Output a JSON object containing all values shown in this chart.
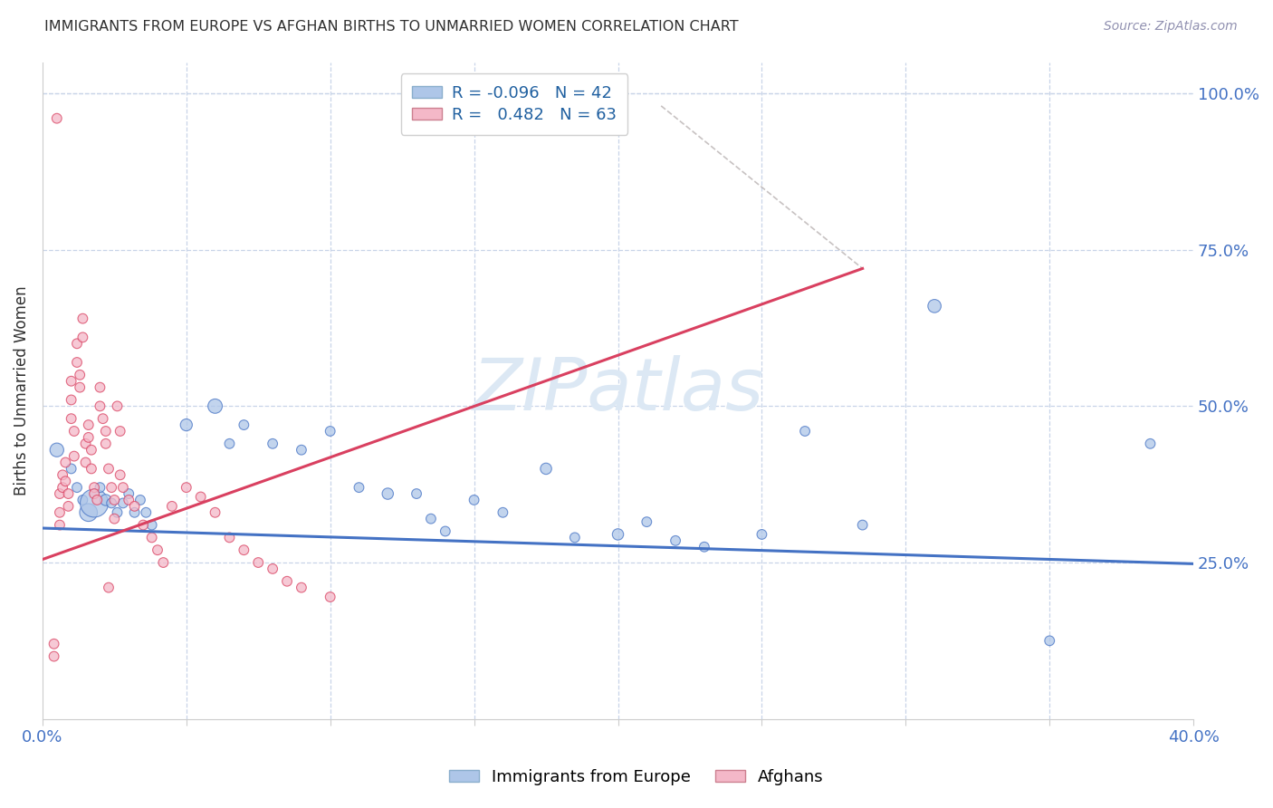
{
  "title": "IMMIGRANTS FROM EUROPE VS AFGHAN BIRTHS TO UNMARRIED WOMEN CORRELATION CHART",
  "source": "Source: ZipAtlas.com",
  "ylabel": "Births to Unmarried Women",
  "watermark": "ZIPatlas",
  "legend_blue_R": "-0.096",
  "legend_blue_N": 42,
  "legend_pink_R": "0.482",
  "legend_pink_N": 63,
  "legend_blue_label": "Immigrants from Europe",
  "legend_pink_label": "Afghans",
  "xlim": [
    0.0,
    0.4
  ],
  "ylim": [
    0.0,
    1.05
  ],
  "blue_color": "#aec6e8",
  "pink_color": "#f4b8c8",
  "blue_line_color": "#4472c4",
  "pink_line_color": "#d94060",
  "background_color": "#ffffff",
  "grid_color": "#c8d4e8",
  "title_color": "#303030",
  "source_color": "#9090b0",
  "watermark_color": "#dce8f4",
  "blue_trend_x": [
    0.0,
    0.4
  ],
  "blue_trend_y": [
    0.305,
    0.248
  ],
  "pink_trend_x": [
    0.0,
    0.285
  ],
  "pink_trend_y": [
    0.255,
    0.72
  ],
  "dash_trend_x": [
    0.215,
    0.285
  ],
  "dash_trend_y": [
    0.98,
    0.72
  ],
  "blue_scatter_x": [
    0.005,
    0.01,
    0.012,
    0.014,
    0.016,
    0.018,
    0.02,
    0.022,
    0.024,
    0.026,
    0.028,
    0.03,
    0.032,
    0.034,
    0.036,
    0.038,
    0.05,
    0.06,
    0.065,
    0.07,
    0.08,
    0.09,
    0.1,
    0.11,
    0.12,
    0.13,
    0.135,
    0.14,
    0.15,
    0.16,
    0.175,
    0.185,
    0.2,
    0.21,
    0.22,
    0.23,
    0.25,
    0.265,
    0.285,
    0.31,
    0.35,
    0.385
  ],
  "blue_scatter_y": [
    0.43,
    0.4,
    0.37,
    0.35,
    0.33,
    0.345,
    0.37,
    0.35,
    0.345,
    0.33,
    0.345,
    0.36,
    0.33,
    0.35,
    0.33,
    0.31,
    0.47,
    0.5,
    0.44,
    0.47,
    0.44,
    0.43,
    0.46,
    0.37,
    0.36,
    0.36,
    0.32,
    0.3,
    0.35,
    0.33,
    0.4,
    0.29,
    0.295,
    0.315,
    0.285,
    0.275,
    0.295,
    0.46,
    0.31,
    0.66,
    0.125,
    0.44
  ],
  "blue_scatter_sizes": [
    120,
    60,
    60,
    60,
    200,
    500,
    60,
    80,
    60,
    60,
    60,
    60,
    60,
    60,
    60,
    60,
    90,
    130,
    60,
    60,
    60,
    60,
    60,
    60,
    80,
    60,
    60,
    60,
    60,
    60,
    80,
    60,
    80,
    60,
    60,
    60,
    60,
    60,
    60,
    110,
    60,
    60
  ],
  "pink_scatter_x": [
    0.004,
    0.004,
    0.006,
    0.006,
    0.006,
    0.007,
    0.007,
    0.008,
    0.008,
    0.009,
    0.009,
    0.01,
    0.01,
    0.01,
    0.011,
    0.011,
    0.012,
    0.012,
    0.013,
    0.013,
    0.014,
    0.014,
    0.015,
    0.015,
    0.016,
    0.016,
    0.017,
    0.017,
    0.018,
    0.018,
    0.019,
    0.02,
    0.02,
    0.021,
    0.022,
    0.022,
    0.023,
    0.024,
    0.025,
    0.025,
    0.026,
    0.027,
    0.028,
    0.03,
    0.032,
    0.035,
    0.038,
    0.04,
    0.042,
    0.045,
    0.05,
    0.055,
    0.06,
    0.065,
    0.07,
    0.075,
    0.08,
    0.085,
    0.09,
    0.1,
    0.005,
    0.023,
    0.027
  ],
  "pink_scatter_y": [
    0.12,
    0.1,
    0.36,
    0.33,
    0.31,
    0.39,
    0.37,
    0.41,
    0.38,
    0.36,
    0.34,
    0.54,
    0.51,
    0.48,
    0.46,
    0.42,
    0.6,
    0.57,
    0.55,
    0.53,
    0.64,
    0.61,
    0.44,
    0.41,
    0.47,
    0.45,
    0.43,
    0.4,
    0.37,
    0.36,
    0.35,
    0.53,
    0.5,
    0.48,
    0.46,
    0.44,
    0.4,
    0.37,
    0.35,
    0.32,
    0.5,
    0.46,
    0.37,
    0.35,
    0.34,
    0.31,
    0.29,
    0.27,
    0.25,
    0.34,
    0.37,
    0.355,
    0.33,
    0.29,
    0.27,
    0.25,
    0.24,
    0.22,
    0.21,
    0.195,
    0.96,
    0.21,
    0.39
  ],
  "pink_scatter_sizes": [
    60,
    60,
    60,
    60,
    60,
    60,
    60,
    60,
    60,
    60,
    60,
    60,
    60,
    60,
    60,
    60,
    60,
    60,
    60,
    60,
    60,
    60,
    60,
    60,
    60,
    60,
    60,
    60,
    60,
    60,
    60,
    60,
    60,
    60,
    60,
    60,
    60,
    60,
    60,
    60,
    60,
    60,
    60,
    60,
    60,
    60,
    60,
    60,
    60,
    60,
    60,
    60,
    60,
    60,
    60,
    60,
    60,
    60,
    60,
    60,
    60,
    60,
    60
  ]
}
